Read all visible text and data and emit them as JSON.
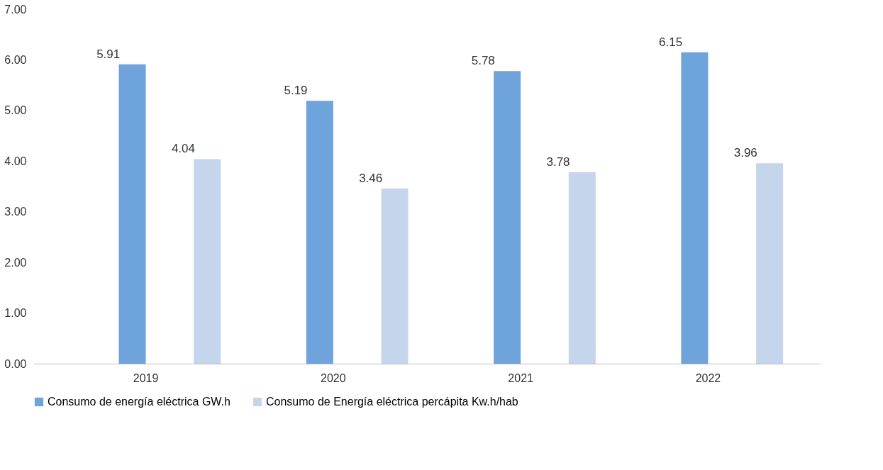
{
  "chart_data": {
    "type": "bar",
    "categories": [
      "2019",
      "2020",
      "2021",
      "2022"
    ],
    "series": [
      {
        "name": "Consumo de energía eléctrica GW.h",
        "color": "#6fa3db",
        "values": [
          5.91,
          5.19,
          5.78,
          6.15
        ]
      },
      {
        "name": "Consumo de Energía eléctrica percápita Kw.h/hab",
        "color": "#c5d6ec",
        "values": [
          4.04,
          3.46,
          3.78,
          3.96
        ]
      }
    ],
    "ylim": [
      0,
      7
    ],
    "yticks": [
      {
        "value": 0,
        "label": "0.00"
      },
      {
        "value": 1,
        "label": "1.00"
      },
      {
        "value": 2,
        "label": "2.00"
      },
      {
        "value": 3,
        "label": "3.00"
      },
      {
        "value": 4,
        "label": "4.00"
      },
      {
        "value": 5,
        "label": "5.00"
      },
      {
        "value": 6,
        "label": "6.00"
      },
      {
        "value": 7,
        "label": "7.00"
      }
    ],
    "data_labels": true,
    "grid": false,
    "legend": "bottom"
  }
}
